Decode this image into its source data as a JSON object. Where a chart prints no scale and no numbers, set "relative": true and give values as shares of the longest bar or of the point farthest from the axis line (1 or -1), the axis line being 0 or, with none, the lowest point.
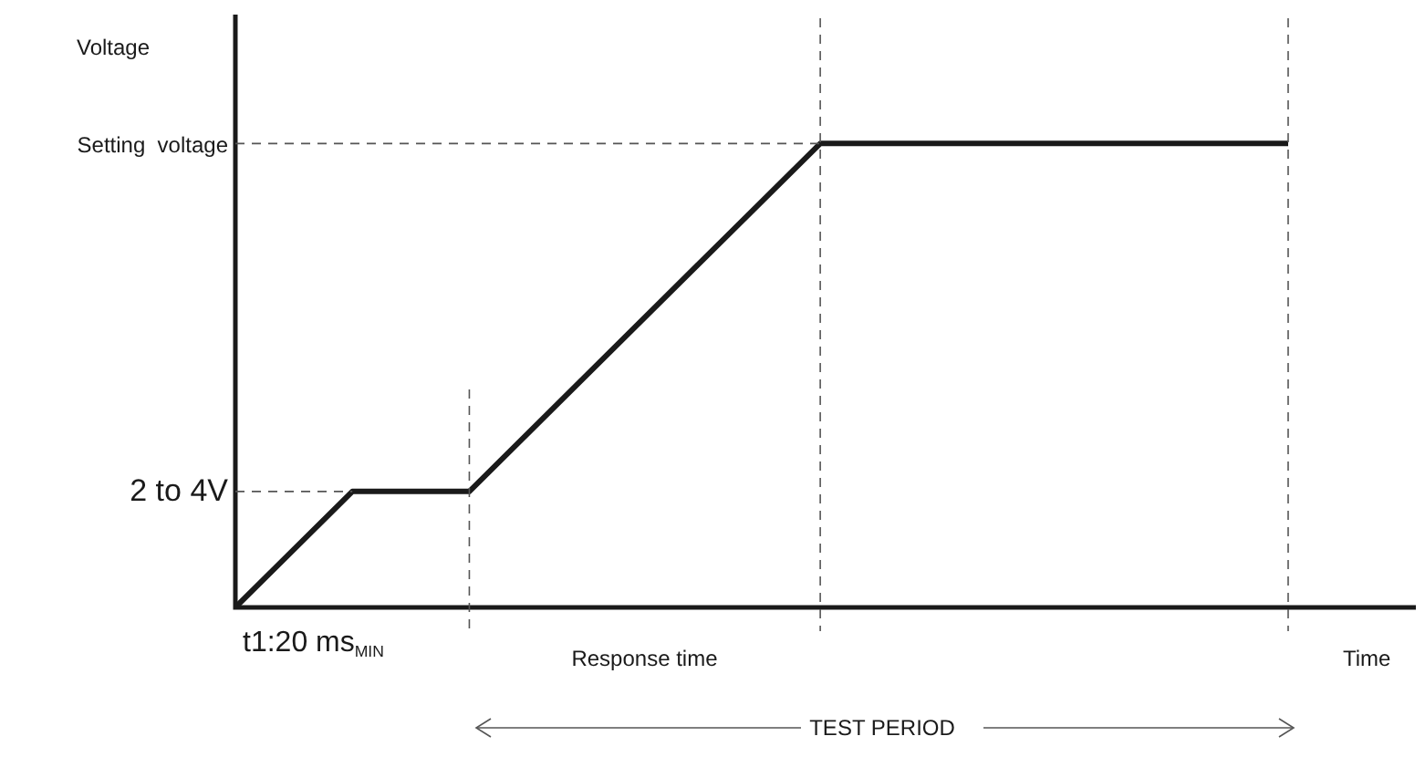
{
  "chart_data": {
    "type": "line",
    "relative": true,
    "categories": [
      null,
      null,
      null,
      null,
      null,
      null,
      null,
      null,
      null,
      null
    ],
    "series": [
      {
        "color": "#1a1a1a",
        "values": [
          0,
          0.25,
          0.25,
          null,
          null,
          1,
          null,
          null,
          null,
          1
        ]
      }
    ],
    "marker": "none",
    "line_style": "solid",
    "grid": false,
    "legend": false,
    "ref_lines": [
      {
        "axis": "y",
        "value": 1,
        "label": "Setting  voltage",
        "line_style": "dashed"
      },
      {
        "axis": "y",
        "value": 0.25,
        "label": "2 to 4V",
        "line_style": "dashed"
      }
    ],
    "annotations": [
      "Voltage",
      "t1:20 ms$_{MIN}$",
      "Response time",
      "Time",
      "TEST PERIOD"
    ]
  }
}
